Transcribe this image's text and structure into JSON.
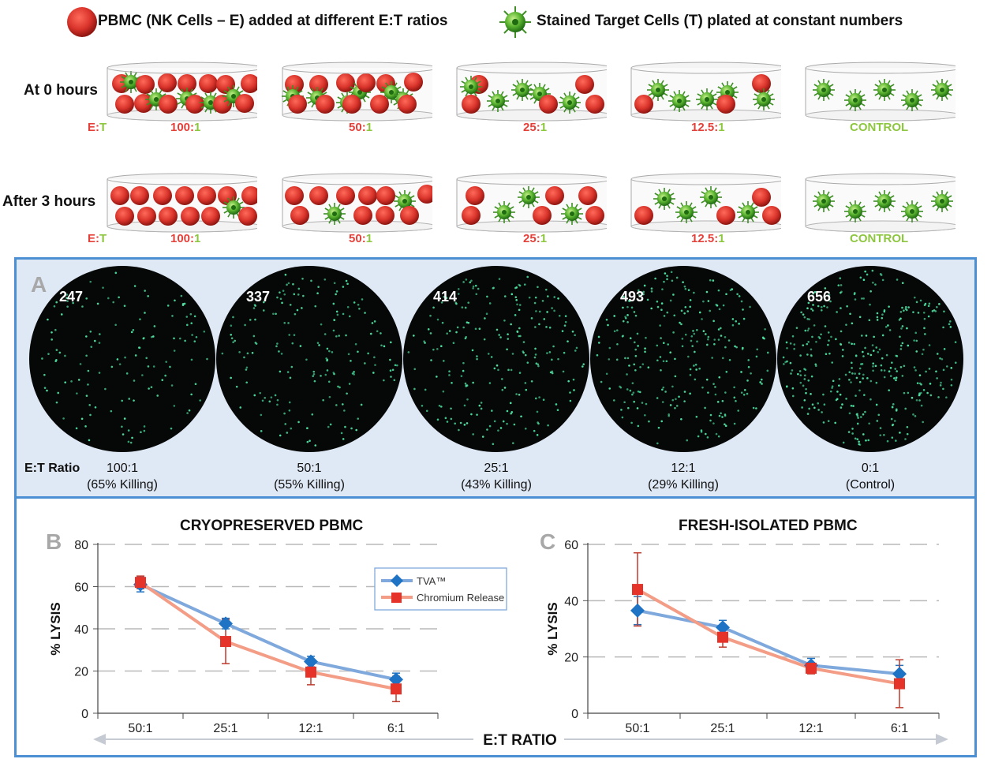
{
  "header": {
    "legend_effector": "PBMC (NK Cells – E) added at different E:T ratios",
    "legend_target": "Stained Target Cells (T) plated at constant numbers"
  },
  "rows": [
    {
      "label": "At 0 hours"
    },
    {
      "label": "After 3 hours"
    }
  ],
  "et_prefix_e": "E",
  "et_prefix_colon": ":",
  "et_prefix_t": "T",
  "dishes": [
    {
      "ratio_left": "100",
      "ratio_right": "1",
      "control": false
    },
    {
      "ratio_left": "50",
      "ratio_right": "1",
      "control": false
    },
    {
      "ratio_left": "25",
      "ratio_right": "1",
      "control": false
    },
    {
      "ratio_left": "12.5",
      "ratio_right": "1",
      "control": false
    },
    {
      "ratio_left": "",
      "ratio_right": "CONTROL",
      "control": true
    }
  ],
  "panel_a": {
    "letter": "A",
    "et_ratio_label": "E:T Ratio",
    "wells": [
      {
        "count": "247",
        "ratio": "100:1",
        "killing": "(65% Killing)"
      },
      {
        "count": "337",
        "ratio": "50:1",
        "killing": "(55% Killing)"
      },
      {
        "count": "414",
        "ratio": "25:1",
        "killing": "(43% Killing)"
      },
      {
        "count": "493",
        "ratio": "12:1",
        "killing": "(29% Killing)"
      },
      {
        "count": "656",
        "ratio": "0:1",
        "killing": "(Control)"
      }
    ]
  },
  "colors": {
    "effector_red": "#d9342b",
    "target_green": "#5cb531",
    "panel_border": "#4d8fd3",
    "panel_bg": "#dfe8f5",
    "tva_blue": "#1f73c4",
    "tva_line": "#7fa9dc",
    "chromium_red": "#e5332a",
    "chromium_line": "#f39c86"
  },
  "x_axis_shared_label": "E:T RATIO",
  "chart_data": [
    {
      "letter": "B",
      "type": "line",
      "title": "CRYOPRESERVED PBMC",
      "ylabel": "% LYSIS",
      "xlabel": "E:T RATIO",
      "categories": [
        "50:1",
        "25:1",
        "12:1",
        "6:1"
      ],
      "ylim": [
        0,
        80
      ],
      "yticks": [
        0,
        20,
        40,
        60,
        80
      ],
      "grid": true,
      "legend": "top-right",
      "series": [
        {
          "name": "TVA™",
          "values": [
            61,
            42.5,
            24.5,
            16
          ],
          "err": [
            3.5,
            2.5,
            2.5,
            3
          ],
          "marker": "diamond"
        },
        {
          "name": "Chromium Release",
          "values": [
            62,
            34,
            19.5,
            11.5
          ],
          "err": [
            3,
            10.5,
            6,
            6
          ],
          "marker": "square"
        }
      ]
    },
    {
      "letter": "C",
      "type": "line",
      "title": "FRESH-ISOLATED PBMC",
      "ylabel": "% LYSIS",
      "xlabel": "E:T RATIO",
      "categories": [
        "50:1",
        "25:1",
        "12:1",
        "6:1"
      ],
      "ylim": [
        0,
        60
      ],
      "yticks": [
        0,
        20,
        40,
        60
      ],
      "grid": true,
      "series": [
        {
          "name": "TVA™",
          "values": [
            36.5,
            30.5,
            17,
            14
          ],
          "err": [
            5,
            2.5,
            2.5,
            3
          ],
          "marker": "diamond"
        },
        {
          "name": "Chromium Release",
          "values": [
            44,
            27,
            16,
            10.5
          ],
          "err": [
            13,
            3.5,
            2,
            8.5
          ],
          "marker": "square"
        }
      ]
    }
  ]
}
